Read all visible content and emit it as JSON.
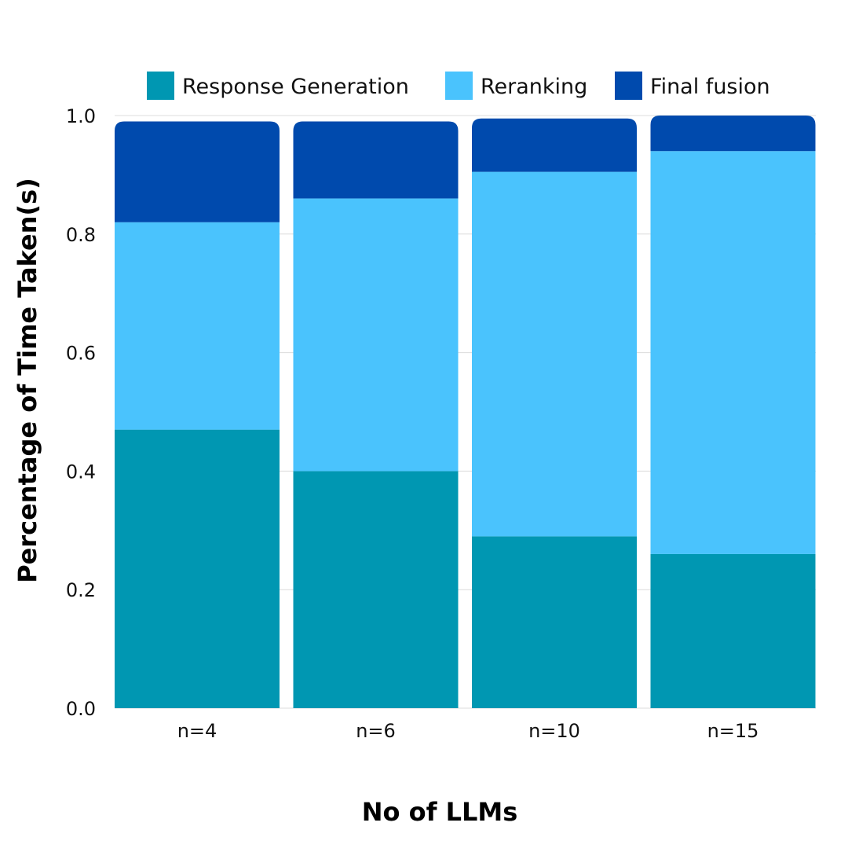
{
  "chart_data": {
    "type": "bar",
    "stacked": true,
    "categories": [
      "n=4",
      "n=6",
      "n=10",
      "n=15"
    ],
    "series": [
      {
        "name": "Response Generation",
        "color": "#0097b2",
        "values": [
          0.47,
          0.4,
          0.29,
          0.26
        ]
      },
      {
        "name": "Reranking",
        "color": "#4ac3fd",
        "values": [
          0.35,
          0.46,
          0.615,
          0.68
        ]
      },
      {
        "name": "Final fusion",
        "color": "#004aad",
        "values": [
          0.17,
          0.13,
          0.09,
          0.06
        ]
      }
    ],
    "xlabel": "No of LLMs",
    "ylabel": "Percentage of Time Taken(s)",
    "ylim": [
      0,
      1.0
    ],
    "yticks": [
      "0.0",
      "0.2",
      "0.4",
      "0.6",
      "0.8",
      "1.0"
    ],
    "ytick_values": [
      0,
      0.2,
      0.4,
      0.6,
      0.8,
      1.0
    ],
    "grid": true,
    "legend_position": "top"
  }
}
